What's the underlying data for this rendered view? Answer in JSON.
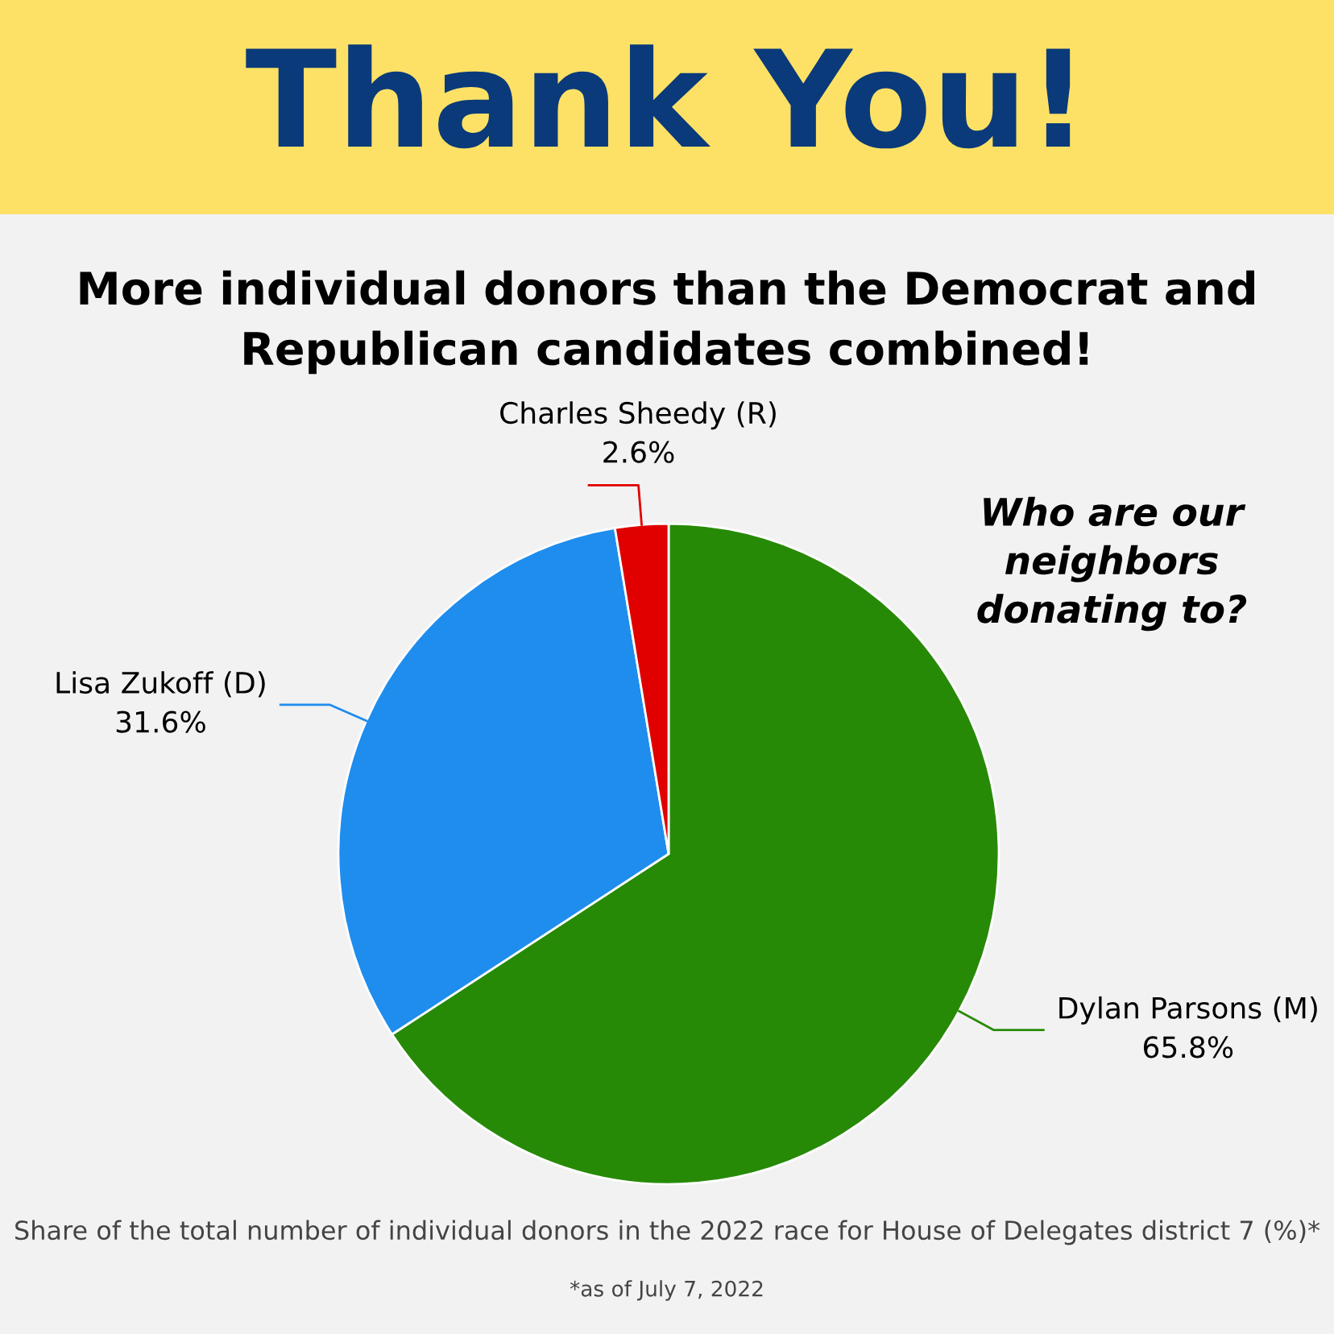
{
  "chart_data": {
    "type": "pie",
    "title": "Thank You!",
    "subtitle": "More individual donors than the Democrat and\nRepublican candidates combined!",
    "categories": [
      "Dylan Parsons (M)",
      "Lisa Zukoff (D)",
      "Charles Sheedy (R)"
    ],
    "values": [
      65.8,
      31.6,
      2.6
    ],
    "value_labels": [
      "65.8%",
      "31.6%",
      "2.6%"
    ],
    "colors": [
      "#278a07",
      "#1f8ded",
      "#e00000"
    ],
    "legend": false,
    "annotations": [
      "Who are our\nneighbors\ndonating to?",
      "Share of the total number of individual donors in the 2022 race for House of Delegates district 7 (%)*",
      "*as of July 7, 2022"
    ]
  }
}
